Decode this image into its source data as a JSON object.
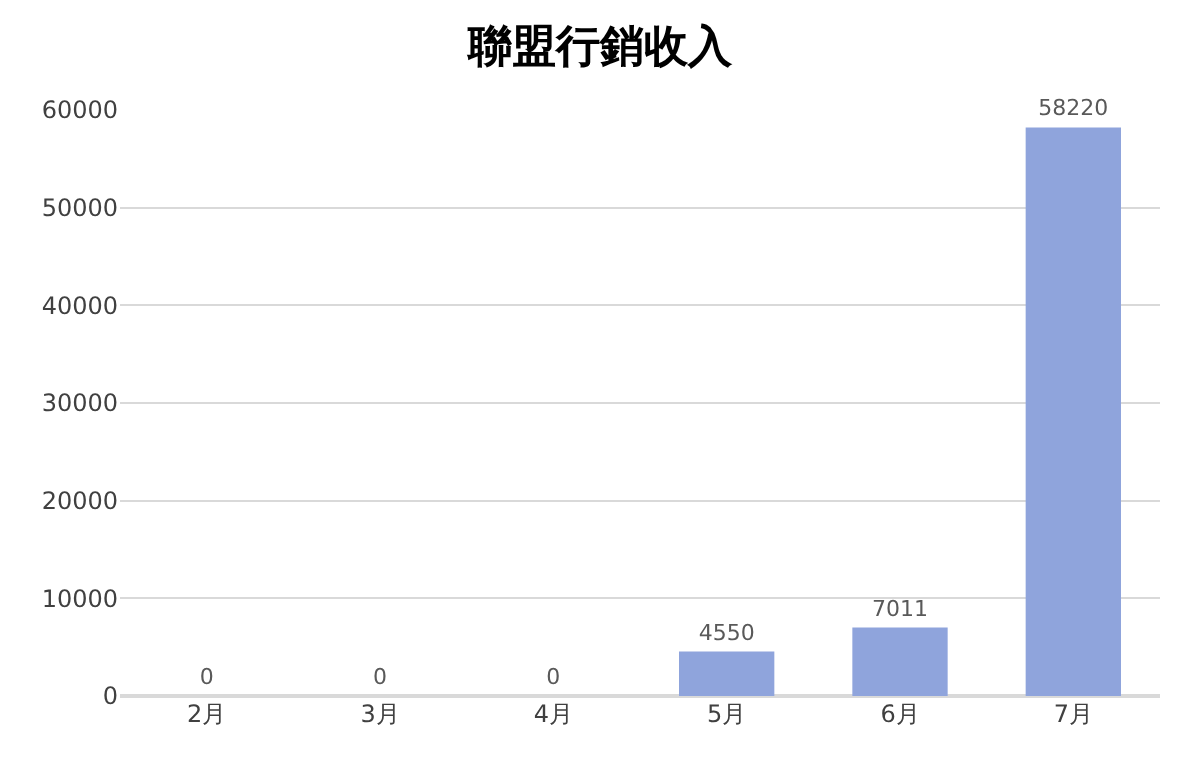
{
  "chart_data": {
    "type": "bar",
    "title": "聯盟行銷收入",
    "categories": [
      "2月",
      "3月",
      "4月",
      "5月",
      "6月",
      "7月"
    ],
    "values": [
      0,
      0,
      0,
      4550,
      7011,
      58220
    ],
    "color": "#8fa4dc",
    "ylim": [
      0,
      60000
    ],
    "yticks": [
      0,
      10000,
      20000,
      30000,
      40000,
      50000,
      60000
    ],
    "grid": "y",
    "data_labels": true
  }
}
